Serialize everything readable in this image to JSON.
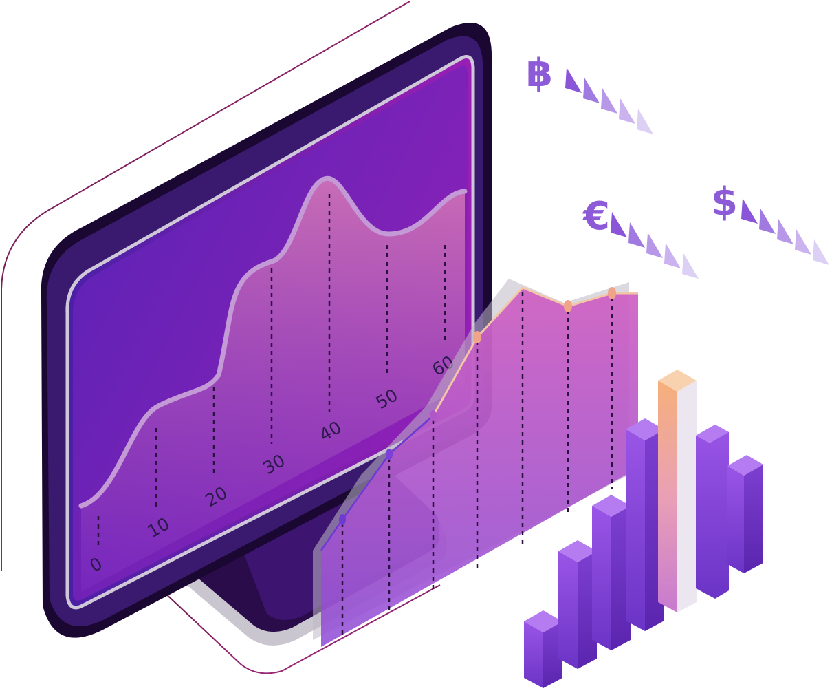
{
  "currencies": {
    "bitcoin": "฿",
    "euro": "€",
    "dollar": "$"
  },
  "screen_axis_labels": [
    "0",
    "10",
    "20",
    "30",
    "40",
    "50",
    "60"
  ],
  "colors": {
    "screen_top": "#9b1fb5",
    "screen_bottom": "#4a1f9e",
    "bezel": "#1f0b3d",
    "bar": "#7a3fd6",
    "accent_bar": "#f3c89a",
    "currency_symbol": "#8d5ad8",
    "outline": "#7a1a5c"
  },
  "icons": [
    "bitcoin-icon",
    "euro-icon",
    "dollar-icon",
    "arrow-triangle-icon"
  ]
}
